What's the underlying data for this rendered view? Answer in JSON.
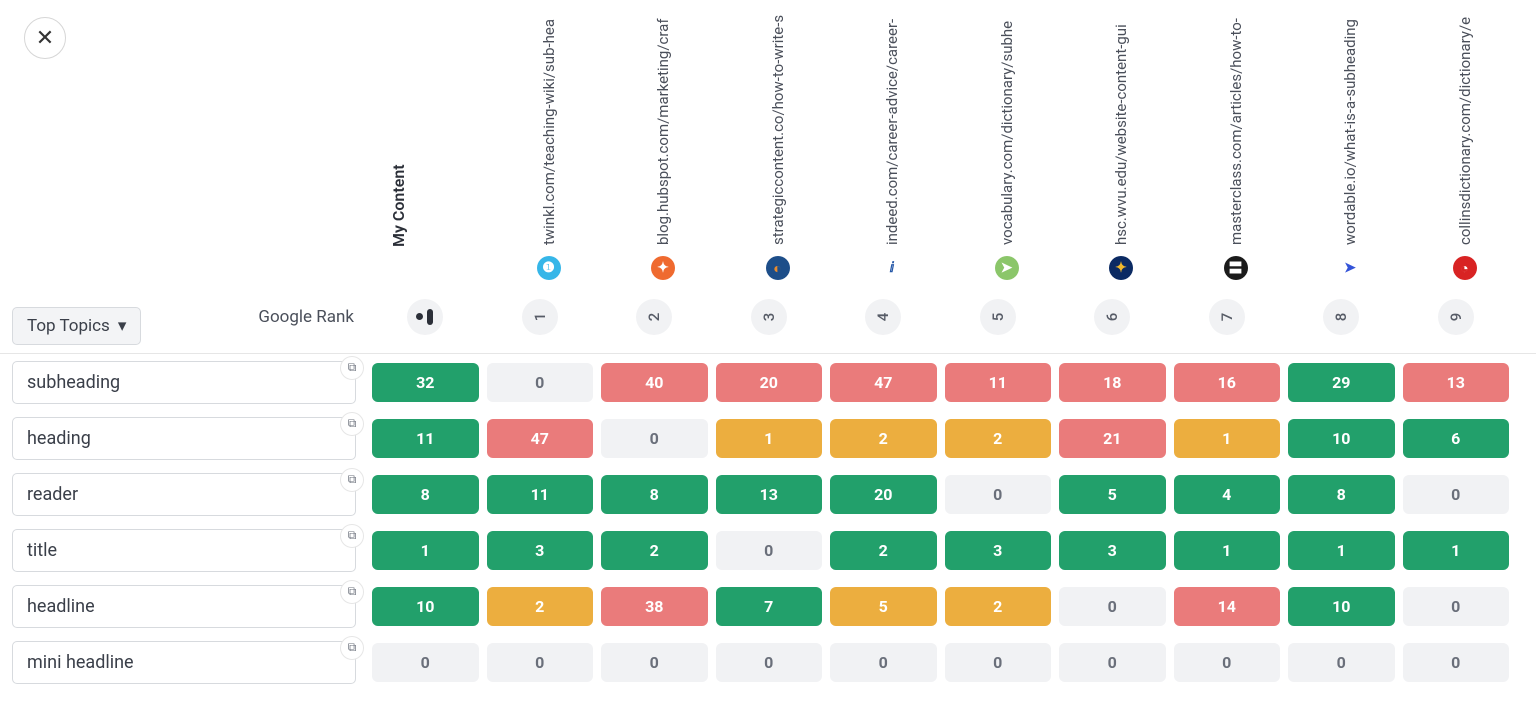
{
  "close_label": "✕",
  "dropdown_label": "Top Topics",
  "google_rank_label": "Google Rank",
  "my_content_label": "My Content",
  "colors": {
    "green": {
      "bg": "#22a06b",
      "fg": "#ffffff"
    },
    "red": {
      "bg": "#ea7b7b",
      "fg": "#ffffff"
    },
    "orange": {
      "bg": "#ecae3f",
      "fg": "#ffffff"
    },
    "gray": {
      "bg": "#f1f2f4",
      "fg": "#6a6f7a"
    }
  },
  "competitors": [
    {
      "rank": "1",
      "url": "twinkl.com/teaching-wiki/sub-hea",
      "icon_bg": "#36b6e8",
      "icon_fg": "#ffffff",
      "glyph": "❶"
    },
    {
      "rank": "2",
      "url": "blog.hubspot.com/marketing/craf",
      "icon_bg": "#ef6a2f",
      "icon_fg": "#ffffff",
      "glyph": "✦"
    },
    {
      "rank": "3",
      "url": "strategiccontent.co/how-to-write-s",
      "icon_bg": "#1d4e89",
      "icon_fg": "#e98b2e",
      "glyph": "◐"
    },
    {
      "rank": "4",
      "url": "indeed.com/career-advice/career-",
      "icon_bg": "#ffffff",
      "icon_fg": "#2557a7",
      "glyph": "ⅈ"
    },
    {
      "rank": "5",
      "url": "vocabulary.com/dictionary/subhe",
      "icon_bg": "#8bc66a",
      "icon_fg": "#ffffff",
      "glyph": "➤"
    },
    {
      "rank": "6",
      "url": "hsc.wvu.edu/website-content-gui",
      "icon_bg": "#0b2a63",
      "icon_fg": "#f0b82d",
      "glyph": "✦"
    },
    {
      "rank": "7",
      "url": "masterclass.com/articles/how-to-",
      "icon_bg": "#1b1b1b",
      "icon_fg": "#ffffff",
      "glyph": "〓"
    },
    {
      "rank": "8",
      "url": "wordable.io/what-is-a-subheading",
      "icon_bg": "#ffffff",
      "icon_fg": "#3353d8",
      "glyph": "➤"
    },
    {
      "rank": "9",
      "url": "collinsdictionary.com/dictionary/e",
      "icon_bg": "#d82323",
      "icon_fg": "#ffffff",
      "glyph": "◔"
    }
  ],
  "topics": [
    {
      "label": "subheading",
      "my": {
        "v": "32",
        "c": "green"
      },
      "vals": [
        {
          "v": "0",
          "c": "gray"
        },
        {
          "v": "40",
          "c": "red"
        },
        {
          "v": "20",
          "c": "red"
        },
        {
          "v": "47",
          "c": "red"
        },
        {
          "v": "11",
          "c": "red"
        },
        {
          "v": "18",
          "c": "red"
        },
        {
          "v": "16",
          "c": "red"
        },
        {
          "v": "29",
          "c": "green"
        },
        {
          "v": "13",
          "c": "red"
        }
      ]
    },
    {
      "label": "heading",
      "my": {
        "v": "11",
        "c": "green"
      },
      "vals": [
        {
          "v": "47",
          "c": "red"
        },
        {
          "v": "0",
          "c": "gray"
        },
        {
          "v": "1",
          "c": "orange"
        },
        {
          "v": "2",
          "c": "orange"
        },
        {
          "v": "2",
          "c": "orange"
        },
        {
          "v": "21",
          "c": "red"
        },
        {
          "v": "1",
          "c": "orange"
        },
        {
          "v": "10",
          "c": "green"
        },
        {
          "v": "6",
          "c": "green"
        }
      ]
    },
    {
      "label": "reader",
      "my": {
        "v": "8",
        "c": "green"
      },
      "vals": [
        {
          "v": "11",
          "c": "green"
        },
        {
          "v": "8",
          "c": "green"
        },
        {
          "v": "13",
          "c": "green"
        },
        {
          "v": "20",
          "c": "green"
        },
        {
          "v": "0",
          "c": "gray"
        },
        {
          "v": "5",
          "c": "green"
        },
        {
          "v": "4",
          "c": "green"
        },
        {
          "v": "8",
          "c": "green"
        },
        {
          "v": "0",
          "c": "gray"
        }
      ]
    },
    {
      "label": "title",
      "my": {
        "v": "1",
        "c": "green"
      },
      "vals": [
        {
          "v": "3",
          "c": "green"
        },
        {
          "v": "2",
          "c": "green"
        },
        {
          "v": "0",
          "c": "gray"
        },
        {
          "v": "2",
          "c": "green"
        },
        {
          "v": "3",
          "c": "green"
        },
        {
          "v": "3",
          "c": "green"
        },
        {
          "v": "1",
          "c": "green"
        },
        {
          "v": "1",
          "c": "green"
        },
        {
          "v": "1",
          "c": "green"
        }
      ]
    },
    {
      "label": "headline",
      "my": {
        "v": "10",
        "c": "green"
      },
      "vals": [
        {
          "v": "2",
          "c": "orange"
        },
        {
          "v": "38",
          "c": "red"
        },
        {
          "v": "7",
          "c": "green"
        },
        {
          "v": "5",
          "c": "orange"
        },
        {
          "v": "2",
          "c": "orange"
        },
        {
          "v": "0",
          "c": "gray"
        },
        {
          "v": "14",
          "c": "red"
        },
        {
          "v": "10",
          "c": "green"
        },
        {
          "v": "0",
          "c": "gray"
        }
      ]
    },
    {
      "label": "mini headline",
      "my": {
        "v": "0",
        "c": "gray"
      },
      "vals": [
        {
          "v": "0",
          "c": "gray"
        },
        {
          "v": "0",
          "c": "gray"
        },
        {
          "v": "0",
          "c": "gray"
        },
        {
          "v": "0",
          "c": "gray"
        },
        {
          "v": "0",
          "c": "gray"
        },
        {
          "v": "0",
          "c": "gray"
        },
        {
          "v": "0",
          "c": "gray"
        },
        {
          "v": "0",
          "c": "gray"
        },
        {
          "v": "0",
          "c": "gray"
        }
      ]
    }
  ]
}
